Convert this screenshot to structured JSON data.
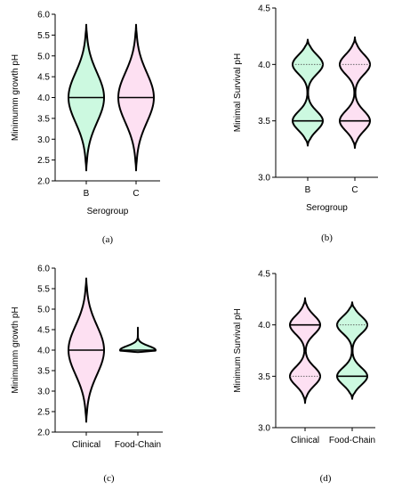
{
  "colors": {
    "green": "#ccf9e0",
    "pink": "#fde0f2",
    "stroke": "#000000"
  },
  "chart_data": [
    {
      "panel_label": "(a)",
      "type": "violin",
      "ylabel": "Minimumm growth pH",
      "xlabel": "Serogroup",
      "ylim": [
        2.0,
        6.0
      ],
      "yticks": [
        "2.0",
        "2.5",
        "3.0",
        "3.5",
        "4.0",
        "4.5",
        "5.0",
        "5.5",
        "6.0"
      ],
      "categories": [
        "B",
        "C"
      ],
      "violins": [
        {
          "category": "B",
          "fill": "green",
          "min": 2.25,
          "max": 5.75,
          "median": 4.0,
          "quartiles": []
        },
        {
          "category": "C",
          "fill": "pink",
          "min": 2.25,
          "max": 5.75,
          "median": 4.0,
          "quartiles": []
        }
      ]
    },
    {
      "panel_label": "(b)",
      "type": "violin",
      "ylabel": "Minimal Survival  pH",
      "xlabel": "Serogroup",
      "ylim": [
        3.0,
        4.5
      ],
      "yticks": [
        "3.0",
        "3.5",
        "4.0",
        "4.5"
      ],
      "categories": [
        "B",
        "C"
      ],
      "violins": [
        {
          "category": "B",
          "fill": "green",
          "min": 3.28,
          "max": 4.22,
          "median": 3.5,
          "quartiles": [
            4.0
          ]
        },
        {
          "category": "C",
          "fill": "pink",
          "min": 3.26,
          "max": 4.24,
          "median": 3.5,
          "quartiles": [
            4.0
          ]
        }
      ]
    },
    {
      "panel_label": "(c)",
      "type": "violin",
      "ylabel": "Minimumm growth pH",
      "xlabel": "",
      "ylim": [
        2.0,
        6.0
      ],
      "yticks": [
        "2.0",
        "2.5",
        "3.0",
        "3.5",
        "4.0",
        "4.5",
        "5.0",
        "5.5",
        "6.0"
      ],
      "categories": [
        "Clinical",
        "Food-Chain"
      ],
      "violins": [
        {
          "category": "Clinical",
          "fill": "pink",
          "min": 2.25,
          "max": 5.75,
          "median": 4.0,
          "quartiles": []
        },
        {
          "category": "Food-Chain",
          "fill": "green",
          "min": 3.95,
          "max": 4.55,
          "median": 4.0,
          "quartiles": []
        }
      ]
    },
    {
      "panel_label": "(d)",
      "type": "violin",
      "ylabel": "Minimum Survival  pH",
      "xlabel": "",
      "ylim": [
        3.0,
        4.5
      ],
      "yticks": [
        "3.0",
        "3.5",
        "4.0",
        "4.5"
      ],
      "categories": [
        "Clinical",
        "Food-Chain"
      ],
      "violins": [
        {
          "category": "Clinical",
          "fill": "pink",
          "min": 3.24,
          "max": 4.26,
          "median": 4.0,
          "quartiles": [
            3.5
          ]
        },
        {
          "category": "Food-Chain",
          "fill": "green",
          "min": 3.28,
          "max": 4.22,
          "median": 3.5,
          "quartiles": [
            4.0
          ]
        }
      ]
    }
  ]
}
